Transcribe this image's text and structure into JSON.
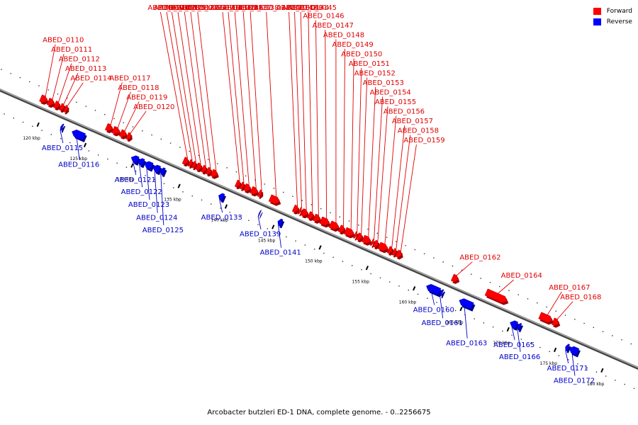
{
  "title": "Arcobacter butzleri ED-1 DNA, complete genome. - 0..2256675",
  "legend": {
    "forward": {
      "label": "Forward",
      "color": "#ff0000"
    },
    "reverse": {
      "label": "Reverse",
      "color": "#0000ff"
    }
  },
  "colors": {
    "forward_label": "#e00000",
    "reverse_label": "#0000c8",
    "backbone": "#555555"
  },
  "ticks": [
    {
      "label": "120 kbp",
      "pos_kbp": 120
    },
    {
      "label": "125 kbp",
      "pos_kbp": 125
    },
    {
      "label": "130 kbp",
      "pos_kbp": 130
    },
    {
      "label": "135 kbp",
      "pos_kbp": 135
    },
    {
      "label": "140 kbp",
      "pos_kbp": 140
    },
    {
      "label": "145 kbp",
      "pos_kbp": 145
    },
    {
      "label": "150 kbp",
      "pos_kbp": 150
    },
    {
      "label": "155 kbp",
      "pos_kbp": 155
    },
    {
      "label": "160 kbp",
      "pos_kbp": 160
    },
    {
      "label": "165 kbp",
      "pos_kbp": 165
    },
    {
      "label": "170 kbp",
      "pos_kbp": 170
    },
    {
      "label": "175 kbp",
      "pos_kbp": 175
    },
    {
      "label": "180 kbp",
      "pos_kbp": 180
    }
  ],
  "genes": [
    {
      "name": "ABED_0110",
      "strand": "forward",
      "start_kbp": 119.2,
      "end_kbp": 119.9
    },
    {
      "name": "ABED_0111",
      "strand": "forward",
      "start_kbp": 120.0,
      "end_kbp": 120.6
    },
    {
      "name": "ABED_0112",
      "strand": "forward",
      "start_kbp": 120.7,
      "end_kbp": 121.2
    },
    {
      "name": "ABED_0113",
      "strand": "forward",
      "start_kbp": 121.3,
      "end_kbp": 121.7
    },
    {
      "name": "ABED_0114",
      "strand": "forward",
      "start_kbp": 121.75,
      "end_kbp": 122.05
    },
    {
      "name": "ABED_0115",
      "strand": "reverse",
      "start_kbp": 122.1,
      "end_kbp": 122.3
    },
    {
      "name": "ABED_0116",
      "strand": "reverse",
      "start_kbp": 123.3,
      "end_kbp": 124.6
    },
    {
      "name": "ABED_0117",
      "strand": "forward",
      "start_kbp": 126.2,
      "end_kbp": 126.8
    },
    {
      "name": "ABED_0118",
      "strand": "forward",
      "start_kbp": 126.9,
      "end_kbp": 127.6
    },
    {
      "name": "ABED_0119",
      "strand": "forward",
      "start_kbp": 127.7,
      "end_kbp": 128.3
    },
    {
      "name": "ABED_0120",
      "strand": "forward",
      "start_kbp": 128.4,
      "end_kbp": 128.8
    },
    {
      "name": "ABED_0121",
      "strand": "reverse",
      "start_kbp": 129.6,
      "end_kbp": 130.3
    },
    {
      "name": "ABED_0122",
      "strand": "reverse",
      "start_kbp": 130.35,
      "end_kbp": 130.9
    },
    {
      "name": "ABED_0123",
      "strand": "reverse",
      "start_kbp": 131.0,
      "end_kbp": 131.8
    },
    {
      "name": "ABED_0124",
      "strand": "reverse",
      "start_kbp": 131.9,
      "end_kbp": 132.6
    },
    {
      "name": "ABED_0125",
      "strand": "reverse",
      "start_kbp": 132.7,
      "end_kbp": 133.1
    },
    {
      "name": "ABED_0126",
      "strand": "forward",
      "start_kbp": 134.4,
      "end_kbp": 134.9
    },
    {
      "name": "ABED_0127",
      "strand": "forward",
      "start_kbp": 135.0,
      "end_kbp": 135.3
    },
    {
      "name": "ABED_0128",
      "strand": "forward",
      "start_kbp": 135.4,
      "end_kbp": 135.7
    },
    {
      "name": "ABED_0129",
      "strand": "forward",
      "start_kbp": 135.8,
      "end_kbp": 136.3
    },
    {
      "name": "ABED_0130",
      "strand": "forward",
      "start_kbp": 136.4,
      "end_kbp": 136.8
    },
    {
      "name": "ABED_0131",
      "strand": "forward",
      "start_kbp": 136.9,
      "end_kbp": 137.3
    },
    {
      "name": "ABED_0132",
      "strand": "forward",
      "start_kbp": 137.4,
      "end_kbp": 138.0
    },
    {
      "name": "ABED_0133",
      "strand": "reverse",
      "start_kbp": 138.9,
      "end_kbp": 139.4
    },
    {
      "name": "ABED_0134",
      "strand": "forward",
      "start_kbp": 140.0,
      "end_kbp": 140.4
    },
    {
      "name": "ABED_0135",
      "strand": "forward",
      "start_kbp": 140.5,
      "end_kbp": 140.8
    },
    {
      "name": "ABED_0136",
      "strand": "forward",
      "start_kbp": 140.9,
      "end_kbp": 141.5
    },
    {
      "name": "ABED_0137",
      "strand": "forward",
      "start_kbp": 141.6,
      "end_kbp": 142.3
    },
    {
      "name": "ABED_0138",
      "strand": "forward",
      "start_kbp": 142.4,
      "end_kbp": 142.7
    },
    {
      "name": "ABED_0139",
      "strand": "reverse",
      "start_kbp": 143.2,
      "end_kbp": 143.3
    },
    {
      "name": "ABED_0140",
      "strand": "forward",
      "start_kbp": 143.6,
      "end_kbp": 144.6
    },
    {
      "name": "ABED_0141",
      "strand": "reverse",
      "start_kbp": 145.2,
      "end_kbp": 145.6
    },
    {
      "name": "ABED_0142",
      "strand": "forward",
      "start_kbp": 146.1,
      "end_kbp": 146.6
    },
    {
      "name": "ABED_0143",
      "strand": "forward",
      "start_kbp": 146.7,
      "end_kbp": 146.9
    },
    {
      "name": "ABED_0144",
      "strand": "forward",
      "start_kbp": 147.0,
      "end_kbp": 147.6
    },
    {
      "name": "ABED_0145",
      "strand": "forward",
      "start_kbp": 147.7,
      "end_kbp": 148.2
    },
    {
      "name": "ABED_0146",
      "strand": "forward",
      "start_kbp": 148.3,
      "end_kbp": 148.9
    },
    {
      "name": "ABED_0147",
      "strand": "forward",
      "start_kbp": 149.0,
      "end_kbp": 149.9
    },
    {
      "name": "ABED_0148",
      "strand": "forward",
      "start_kbp": 150.0,
      "end_kbp": 150.9
    },
    {
      "name": "ABED_0149",
      "strand": "forward",
      "start_kbp": 151.0,
      "end_kbp": 151.5
    },
    {
      "name": "ABED_0150",
      "strand": "forward",
      "start_kbp": 151.6,
      "end_kbp": 152.5
    },
    {
      "name": "ABED_0151",
      "strand": "forward",
      "start_kbp": 152.6,
      "end_kbp": 152.8
    },
    {
      "name": "ABED_0152",
      "strand": "forward",
      "start_kbp": 152.9,
      "end_kbp": 153.4
    },
    {
      "name": "ABED_0153",
      "strand": "forward",
      "start_kbp": 153.5,
      "end_kbp": 154.3
    },
    {
      "name": "ABED_0154",
      "strand": "forward",
      "start_kbp": 154.4,
      "end_kbp": 154.6
    },
    {
      "name": "ABED_0155",
      "strand": "forward",
      "start_kbp": 154.7,
      "end_kbp": 155.1
    },
    {
      "name": "ABED_0156",
      "strand": "forward",
      "start_kbp": 155.2,
      "end_kbp": 156.1
    },
    {
      "name": "ABED_0157",
      "strand": "forward",
      "start_kbp": 156.2,
      "end_kbp": 156.6
    },
    {
      "name": "ABED_0158",
      "strand": "forward",
      "start_kbp": 156.7,
      "end_kbp": 157.0
    },
    {
      "name": "ABED_0159",
      "strand": "forward",
      "start_kbp": 157.1,
      "end_kbp": 157.6
    },
    {
      "name": "ABED_0160",
      "strand": "reverse",
      "start_kbp": 161.0,
      "end_kbp": 162.4
    },
    {
      "name": "ABED_0161",
      "strand": "reverse",
      "start_kbp": 162.5,
      "end_kbp": 162.7
    },
    {
      "name": "ABED_0162",
      "strand": "forward",
      "start_kbp": 163.0,
      "end_kbp": 163.6
    },
    {
      "name": "ABED_0163",
      "strand": "reverse",
      "start_kbp": 164.5,
      "end_kbp": 165.9
    },
    {
      "name": "ABED_0164",
      "strand": "forward",
      "start_kbp": 166.6,
      "end_kbp": 168.8
    },
    {
      "name": "ABED_0165",
      "strand": "reverse",
      "start_kbp": 169.9,
      "end_kbp": 170.6
    },
    {
      "name": "ABED_0166",
      "strand": "reverse",
      "start_kbp": 170.7,
      "end_kbp": 171.0
    },
    {
      "name": "ABED_0167",
      "strand": "forward",
      "start_kbp": 172.3,
      "end_kbp": 173.6
    },
    {
      "name": "ABED_0168",
      "strand": "forward",
      "start_kbp": 173.7,
      "end_kbp": 174.3
    },
    {
      "name": "ABED_0171",
      "strand": "reverse",
      "start_kbp": 175.8,
      "end_kbp": 176.1
    },
    {
      "name": "ABED_0172",
      "strand": "reverse",
      "start_kbp": 176.2,
      "end_kbp": 177.1
    }
  ]
}
